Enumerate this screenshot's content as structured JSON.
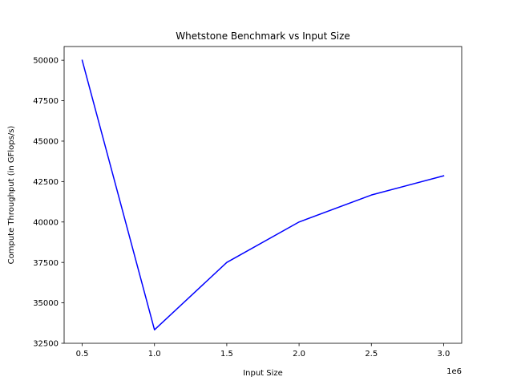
{
  "chart_data": {
    "type": "line",
    "title": "Whetstone Benchmark vs Input Size",
    "xlabel": "Input Size",
    "ylabel": "Compute Throughput (in GFlops/s)",
    "x_offset_label": "1e6",
    "xlim": [
      0.375,
      3.125
    ],
    "ylim": [
      32500,
      50850
    ],
    "x_ticks": [
      0.5,
      1.0,
      1.5,
      2.0,
      2.5,
      3.0
    ],
    "x_tick_labels": [
      "0.5",
      "1.0",
      "1.5",
      "2.0",
      "2.5",
      "3.0"
    ],
    "y_ticks": [
      32500,
      35000,
      37500,
      40000,
      42500,
      45000,
      47500,
      50000
    ],
    "y_tick_labels": [
      "32500",
      "35000",
      "37500",
      "40000",
      "42500",
      "45000",
      "47500",
      "50000"
    ],
    "grid": false,
    "series": [
      {
        "color": "#0000ff",
        "x": [
          0.5,
          1.0,
          1.5,
          2.0,
          2.5,
          3.0
        ],
        "y": [
          50000,
          33333,
          37500,
          40000,
          41667,
          42857
        ]
      }
    ]
  }
}
